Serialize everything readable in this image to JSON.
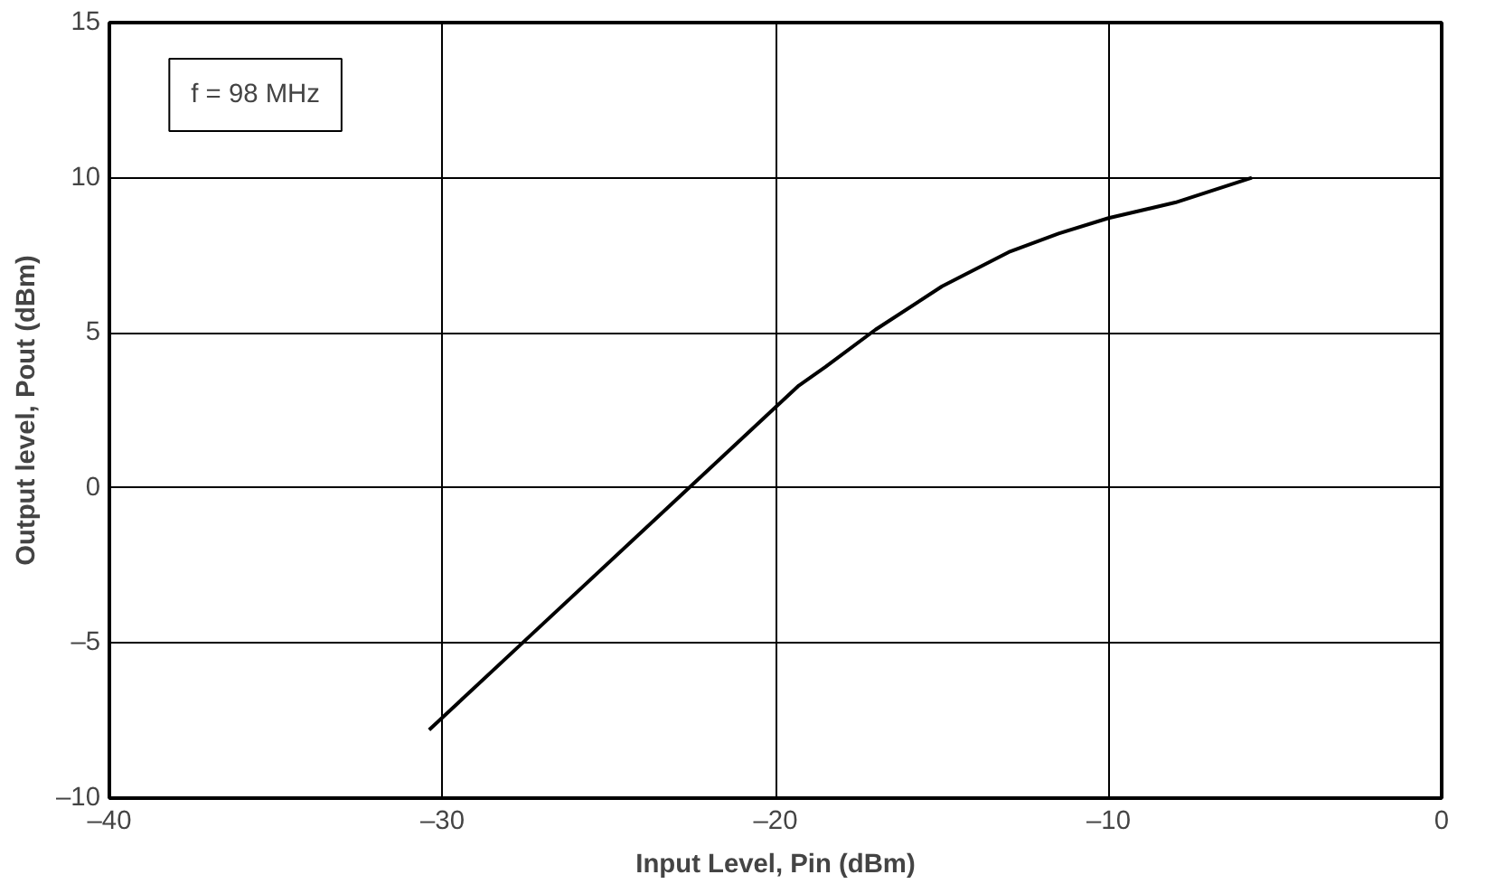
{
  "chart_data": {
    "type": "line",
    "xlabel": "Input Level, Pin (dBm)",
    "ylabel": "Output level, Pout (dBm)",
    "annotations": [
      "f = 98 MHz"
    ],
    "xlim": [
      -40,
      0
    ],
    "ylim": [
      -10,
      15
    ],
    "xticks": [
      {
        "value": -40,
        "label": "–40"
      },
      {
        "value": -30,
        "label": "–30"
      },
      {
        "value": -20,
        "label": "–20"
      },
      {
        "value": -10,
        "label": "–10"
      },
      0
    ],
    "yticks": [
      {
        "value": -10,
        "label": "–10"
      },
      {
        "value": -5,
        "label": "–5"
      },
      0,
      5,
      10,
      15
    ],
    "grid": true,
    "line_style": "solid",
    "series": [
      {
        "color": "#000000",
        "x": [
          -30.4,
          -27.6,
          -22.6,
          -20,
          -19.3,
          -18.5,
          -17,
          -15,
          -13,
          -11.5,
          -10,
          -8,
          -5.7
        ],
        "values": [
          -7.8,
          -5,
          0,
          2.6,
          3.3,
          3.9,
          5.1,
          6.5,
          7.6,
          8.2,
          8.7,
          9.2,
          10
        ]
      }
    ]
  }
}
